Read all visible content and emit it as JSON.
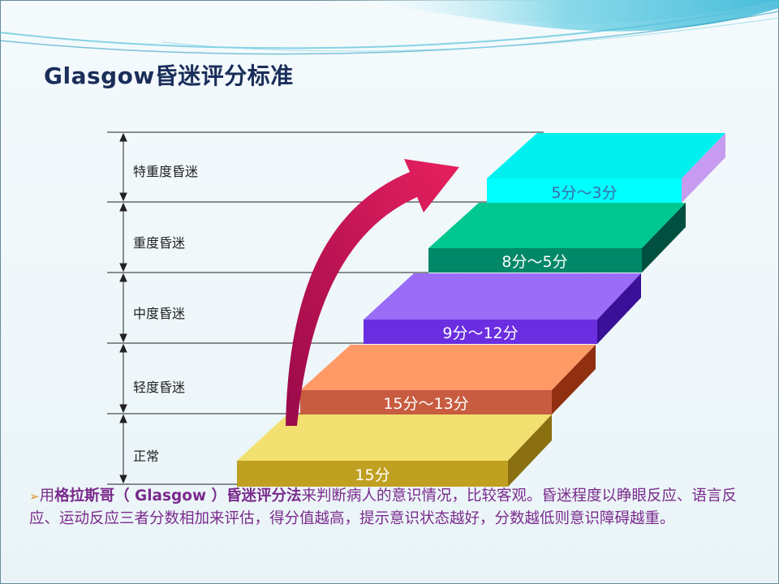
{
  "title": "Glasgow昏迷评分标准",
  "levels": [
    {
      "label": "特重度昏迷",
      "score": "5分～3分",
      "top": "#00f0f0",
      "front": "#00ffff",
      "side": "#c79cf0",
      "text": "#3060a0"
    },
    {
      "label": "重度昏迷",
      "score": "8分～5分",
      "top": "#00c890",
      "front": "#008868",
      "side": "#005040",
      "text": "#ffffff"
    },
    {
      "label": "中度昏迷",
      "score": "9分～12分",
      "top": "#9a6cf8",
      "front": "#6a2ee0",
      "side": "#3a1098",
      "text": "#ffffff"
    },
    {
      "label": "轻度昏迷",
      "score": "15分～13分",
      "top": "#ff9a66",
      "front": "#c85c40",
      "side": "#903010",
      "text": "#ffffff"
    },
    {
      "label": "正常",
      "score": "15分",
      "top": "#f2e070",
      "front": "#c0a020",
      "side": "#8a7010",
      "text": "#ffffff"
    }
  ],
  "description": {
    "prefix": "用",
    "highlight": "格拉斯哥（ Glasgow ）昏迷评分法",
    "rest": "来判断病人的意识情况，比较客观。昏迷程度以睁眼反应、语言反应、运动反应三者分数相加来评估，得分值越高，提示意识状态越好，分数越低则意识障碍越重。"
  },
  "colors": {
    "title": "#1a2e5a",
    "description": "#7a2a8c",
    "arrow": "#c4145a",
    "bullet": "#e0962a"
  }
}
